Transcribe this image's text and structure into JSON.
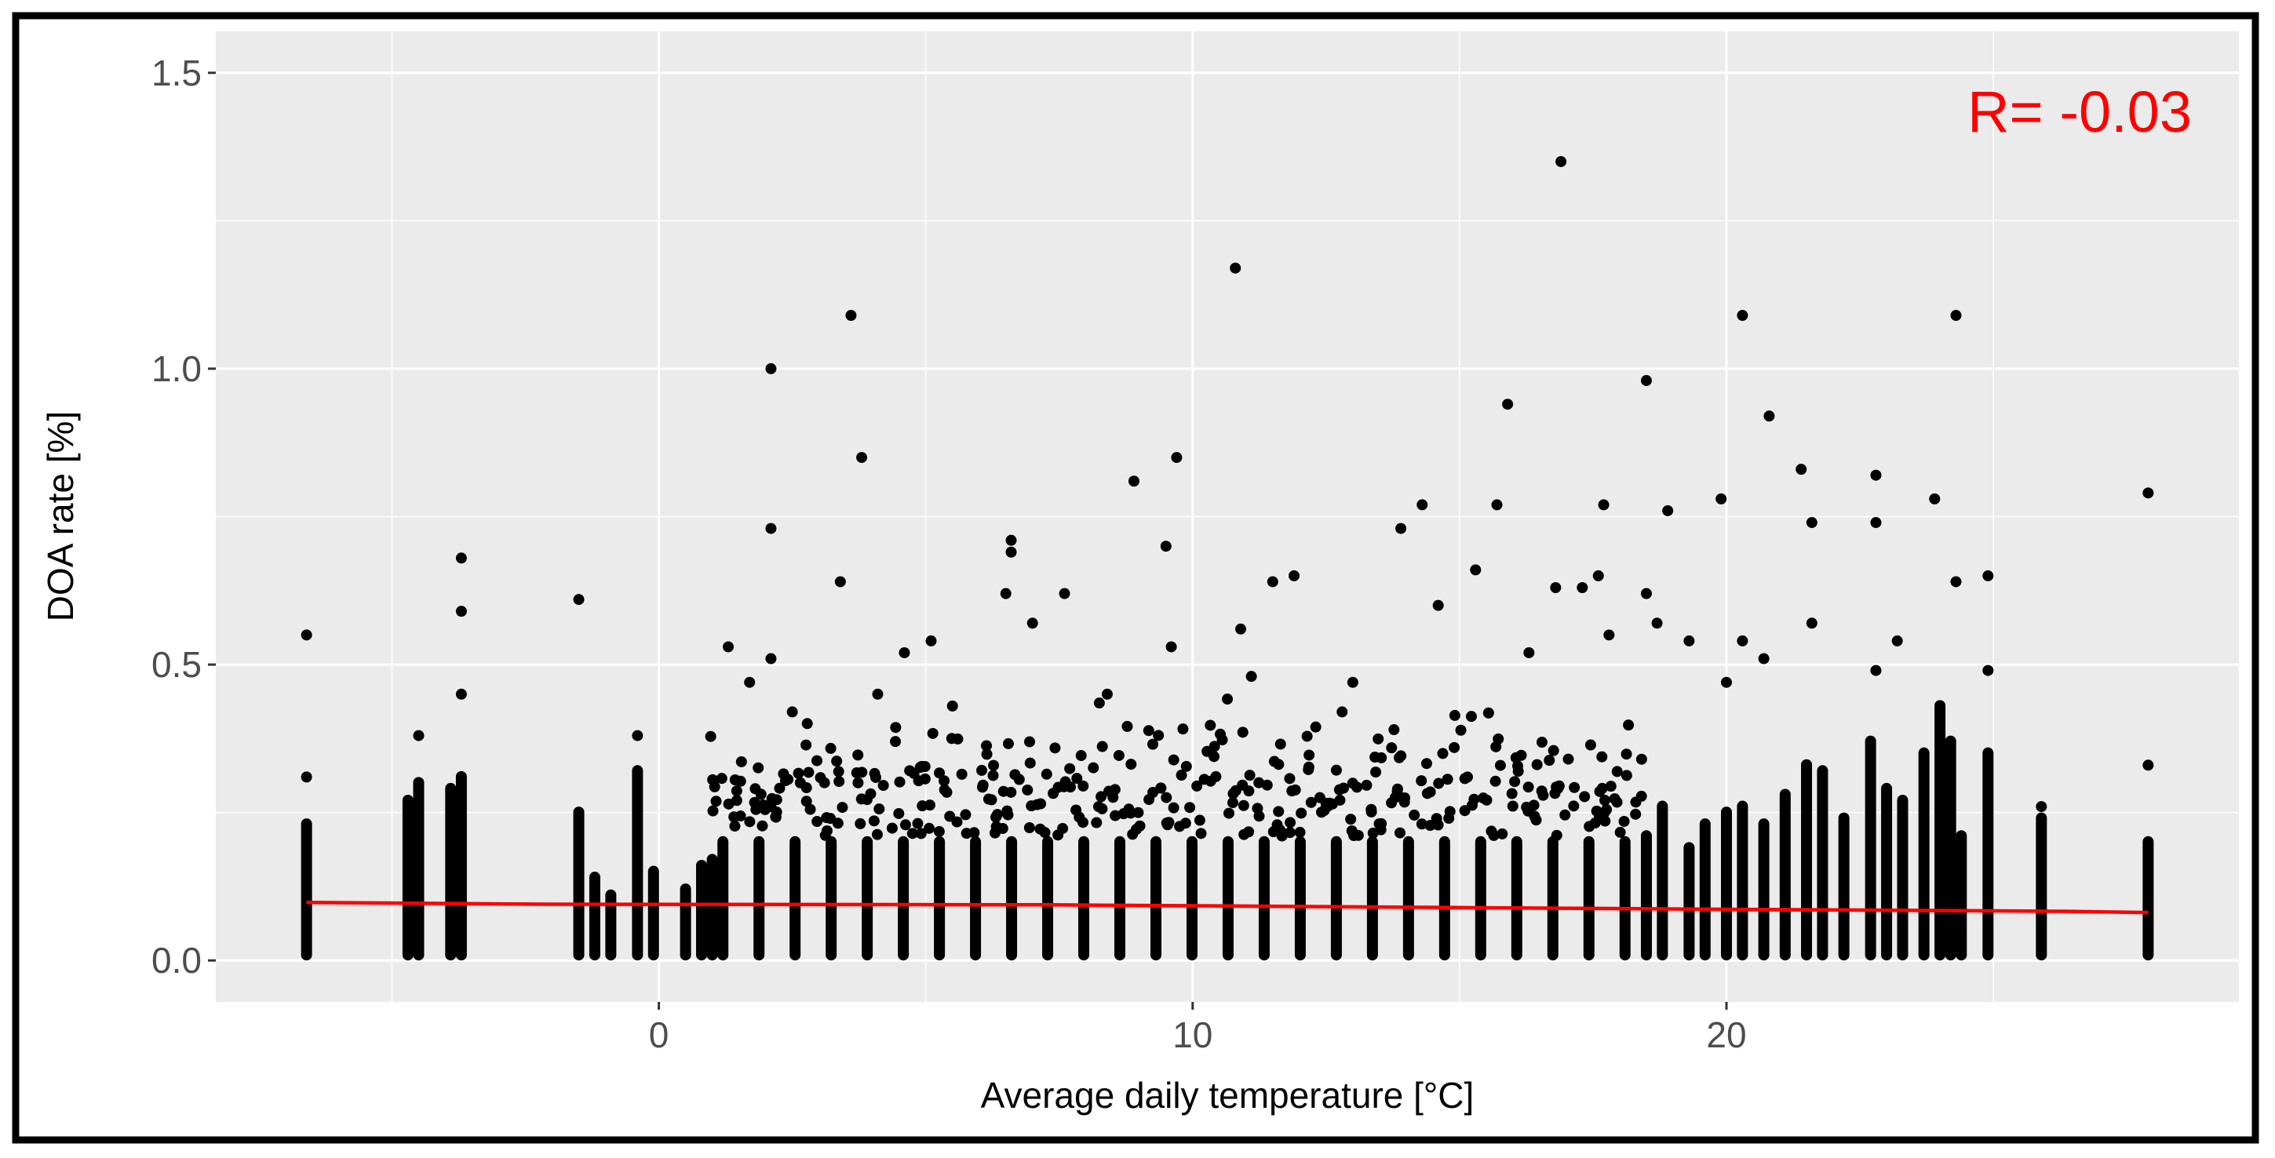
{
  "chart_data": {
    "type": "scatter",
    "xlabel": "Average daily temperature [°C]",
    "ylabel": "DOA rate [%]",
    "xlim": [
      -8.3,
      29.6
    ],
    "ylim": [
      -0.07,
      1.57
    ],
    "x_ticks": [
      0,
      10,
      20
    ],
    "x_tick_labels": [
      "0",
      "10",
      "20"
    ],
    "x_minor_ticks": [
      -5,
      5,
      15,
      25
    ],
    "y_ticks": [
      0.0,
      0.5,
      1.0,
      1.5
    ],
    "y_tick_labels": [
      "0.0",
      "0.5",
      "1.0",
      "1.5"
    ],
    "y_minor_ticks": [
      0.25,
      0.75,
      1.25
    ],
    "grid": true,
    "legend": "none",
    "annotation": {
      "text": "R= -0.03",
      "color": "#ff0000"
    },
    "colors": {
      "panel": "#ebebeb",
      "grid": "#ffffff",
      "points": "#000000",
      "trend": "#ff0000",
      "border": "#000000"
    },
    "outlier_points": [
      {
        "x": -6.6,
        "y": 0.55
      },
      {
        "x": -6.6,
        "y": 0.31
      },
      {
        "x": -3.7,
        "y": 0.68
      },
      {
        "x": -3.7,
        "y": 0.59
      },
      {
        "x": -3.7,
        "y": 0.45
      },
      {
        "x": -4.5,
        "y": 0.38
      },
      {
        "x": -1.5,
        "y": 0.61
      },
      {
        "x": -0.4,
        "y": 0.38
      },
      {
        "x": 2.1,
        "y": 1.0
      },
      {
        "x": 2.1,
        "y": 0.73
      },
      {
        "x": 1.3,
        "y": 0.53
      },
      {
        "x": 2.1,
        "y": 0.51
      },
      {
        "x": 3.4,
        "y": 0.64
      },
      {
        "x": 3.6,
        "y": 1.09
      },
      {
        "x": 3.8,
        "y": 0.85
      },
      {
        "x": 5.1,
        "y": 0.54
      },
      {
        "x": 6.6,
        "y": 0.71
      },
      {
        "x": 6.6,
        "y": 0.69
      },
      {
        "x": 6.5,
        "y": 0.62
      },
      {
        "x": 7.0,
        "y": 0.57
      },
      {
        "x": 7.6,
        "y": 0.62
      },
      {
        "x": 8.9,
        "y": 0.81
      },
      {
        "x": 9.5,
        "y": 0.7
      },
      {
        "x": 9.7,
        "y": 0.85
      },
      {
        "x": 10.8,
        "y": 1.17
      },
      {
        "x": 10.9,
        "y": 0.56
      },
      {
        "x": 11.5,
        "y": 0.64
      },
      {
        "x": 11.9,
        "y": 0.65
      },
      {
        "x": 13.9,
        "y": 0.73
      },
      {
        "x": 14.3,
        "y": 0.77
      },
      {
        "x": 15.3,
        "y": 0.66
      },
      {
        "x": 15.9,
        "y": 0.94
      },
      {
        "x": 15.7,
        "y": 0.77
      },
      {
        "x": 16.9,
        "y": 1.35
      },
      {
        "x": 16.8,
        "y": 0.63
      },
      {
        "x": 17.3,
        "y": 0.63
      },
      {
        "x": 17.6,
        "y": 0.65
      },
      {
        "x": 17.7,
        "y": 0.77
      },
      {
        "x": 18.5,
        "y": 0.98
      },
      {
        "x": 18.5,
        "y": 0.62
      },
      {
        "x": 18.9,
        "y": 0.76
      },
      {
        "x": 19.9,
        "y": 0.78
      },
      {
        "x": 20.3,
        "y": 1.09
      },
      {
        "x": 20.8,
        "y": 0.92
      },
      {
        "x": 21.4,
        "y": 0.83
      },
      {
        "x": 21.6,
        "y": 0.74
      },
      {
        "x": 22.8,
        "y": 0.82
      },
      {
        "x": 22.8,
        "y": 0.74
      },
      {
        "x": 23.9,
        "y": 0.78
      },
      {
        "x": 24.3,
        "y": 1.09
      },
      {
        "x": 24.3,
        "y": 0.64
      },
      {
        "x": 24.9,
        "y": 0.65
      },
      {
        "x": 24.9,
        "y": 0.49
      },
      {
        "x": 27.9,
        "y": 0.79
      },
      {
        "x": 27.9,
        "y": 0.33
      },
      {
        "x": 25.9,
        "y": 0.26
      },
      {
        "x": 20.0,
        "y": 0.47
      },
      {
        "x": 20.3,
        "y": 0.54
      },
      {
        "x": 19.3,
        "y": 0.54
      },
      {
        "x": 18.7,
        "y": 0.57
      },
      {
        "x": 17.8,
        "y": 0.55
      },
      {
        "x": 16.3,
        "y": 0.52
      },
      {
        "x": 14.6,
        "y": 0.6
      },
      {
        "x": 13.0,
        "y": 0.47
      },
      {
        "x": 12.8,
        "y": 0.42
      },
      {
        "x": 9.6,
        "y": 0.53
      },
      {
        "x": 8.4,
        "y": 0.45
      },
      {
        "x": 4.6,
        "y": 0.52
      },
      {
        "x": 4.1,
        "y": 0.45
      },
      {
        "x": 1.7,
        "y": 0.47
      },
      {
        "x": 21.6,
        "y": 0.57
      },
      {
        "x": 23.2,
        "y": 0.54
      },
      {
        "x": 22.8,
        "y": 0.49
      },
      {
        "x": 20.7,
        "y": 0.51
      },
      {
        "x": 2.5,
        "y": 0.42
      },
      {
        "x": 5.5,
        "y": 0.43
      },
      {
        "x": 11.1,
        "y": 0.48
      }
    ],
    "point_columns": [
      {
        "x": -6.6,
        "ymax": 0.24
      },
      {
        "x": -4.7,
        "ymax": 0.28
      },
      {
        "x": -4.5,
        "ymax": 0.31
      },
      {
        "x": -3.9,
        "ymax": 0.3
      },
      {
        "x": -3.7,
        "ymax": 0.32
      },
      {
        "x": -1.5,
        "ymax": 0.26
      },
      {
        "x": -1.2,
        "ymax": 0.15
      },
      {
        "x": -0.9,
        "ymax": 0.12
      },
      {
        "x": -0.4,
        "ymax": 0.33
      },
      {
        "x": -0.1,
        "ymax": 0.16
      },
      {
        "x": 0.5,
        "ymax": 0.13
      },
      {
        "x": 0.8,
        "ymax": 0.17
      },
      {
        "x": 1.0,
        "ymax": 0.18
      },
      {
        "x": 18.5,
        "ymax": 0.22
      },
      {
        "x": 18.8,
        "ymax": 0.27
      },
      {
        "x": 19.3,
        "ymax": 0.2
      },
      {
        "x": 19.6,
        "ymax": 0.24
      },
      {
        "x": 20.0,
        "ymax": 0.26
      },
      {
        "x": 20.3,
        "ymax": 0.27
      },
      {
        "x": 20.7,
        "ymax": 0.24
      },
      {
        "x": 21.1,
        "ymax": 0.29
      },
      {
        "x": 21.5,
        "ymax": 0.34
      },
      {
        "x": 21.8,
        "ymax": 0.33
      },
      {
        "x": 22.2,
        "ymax": 0.25
      },
      {
        "x": 22.7,
        "ymax": 0.38
      },
      {
        "x": 23.0,
        "ymax": 0.3
      },
      {
        "x": 23.3,
        "ymax": 0.28
      },
      {
        "x": 23.7,
        "ymax": 0.36
      },
      {
        "x": 24.0,
        "ymax": 0.44
      },
      {
        "x": 24.2,
        "ymax": 0.38
      },
      {
        "x": 24.4,
        "ymax": 0.22
      },
      {
        "x": 24.9,
        "ymax": 0.36
      },
      {
        "x": 25.9,
        "ymax": 0.25
      },
      {
        "x": 27.9,
        "ymax": 0.21
      }
    ],
    "dense_band": {
      "x_range": [
        1.2,
        18.1
      ],
      "columns": 26,
      "base_ymax": 0.21,
      "upper_ymax": 0.45
    },
    "trend_line": [
      {
        "x": -6.6,
        "y": 0.098
      },
      {
        "x": -2.2,
        "y": 0.095
      },
      {
        "x": 7.3,
        "y": 0.094
      },
      {
        "x": 17.2,
        "y": 0.088
      },
      {
        "x": 26.4,
        "y": 0.083
      },
      {
        "x": 27.9,
        "y": 0.081
      }
    ]
  }
}
